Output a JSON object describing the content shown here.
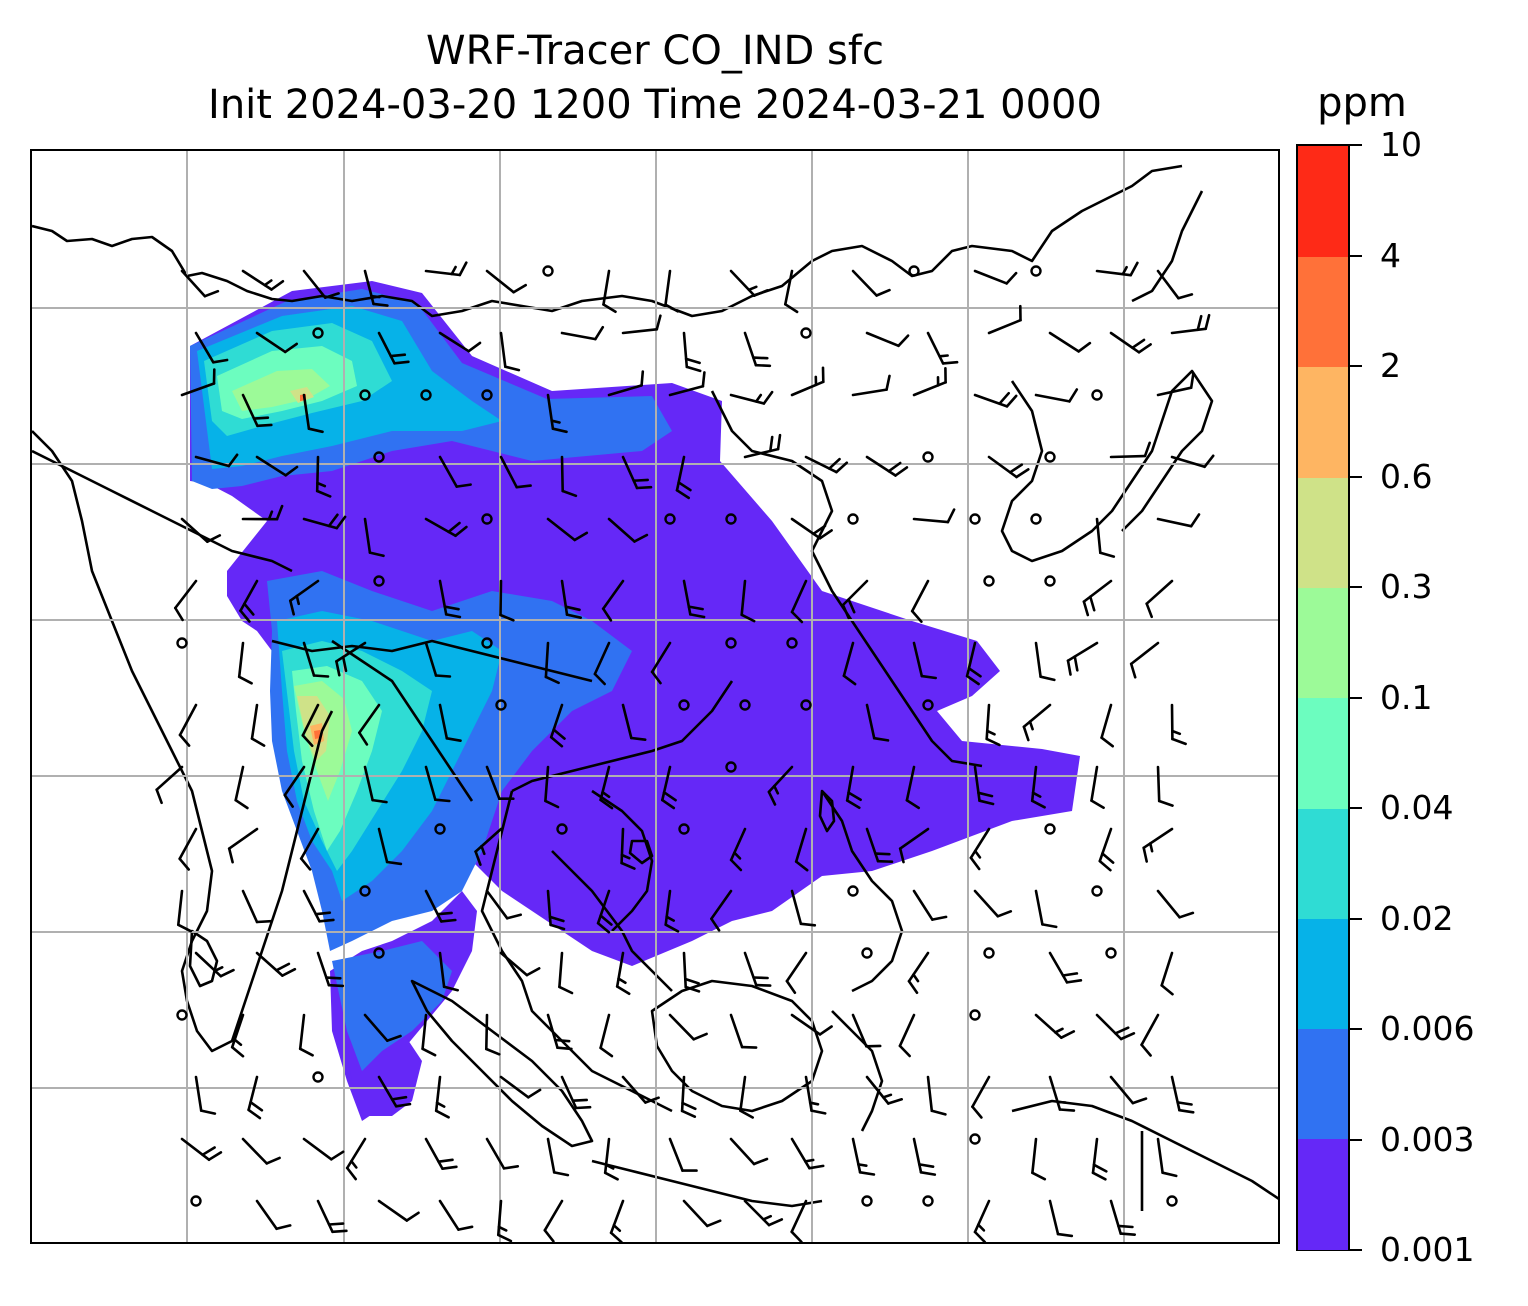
{
  "title": {
    "line1": "WRF-Tracer CO_IND sfc",
    "line2": "Init 2024-03-20 1200 Time 2024-03-21 0000"
  },
  "colorbar": {
    "unit": "ppm",
    "tick_labels": [
      "0.001",
      "0.003",
      "0.006",
      "0.02",
      "0.04",
      "0.1",
      "0.3",
      "0.6",
      "2",
      "4",
      "10"
    ],
    "level_colors": [
      "#6528f7",
      "#3072f2",
      "#06b2e8",
      "#2fdcd4",
      "#6cfdbf",
      "#9cfa98",
      "#cfe288",
      "#feb562",
      "#ff7139",
      "#fe2a17"
    ]
  },
  "map": {
    "field": "CO_IND tracer concentration (filled contours) with wind barbs",
    "colors": {
      "coastline": "#000000",
      "gridline": "#b0b0b0",
      "barb": "#000000"
    }
  }
}
